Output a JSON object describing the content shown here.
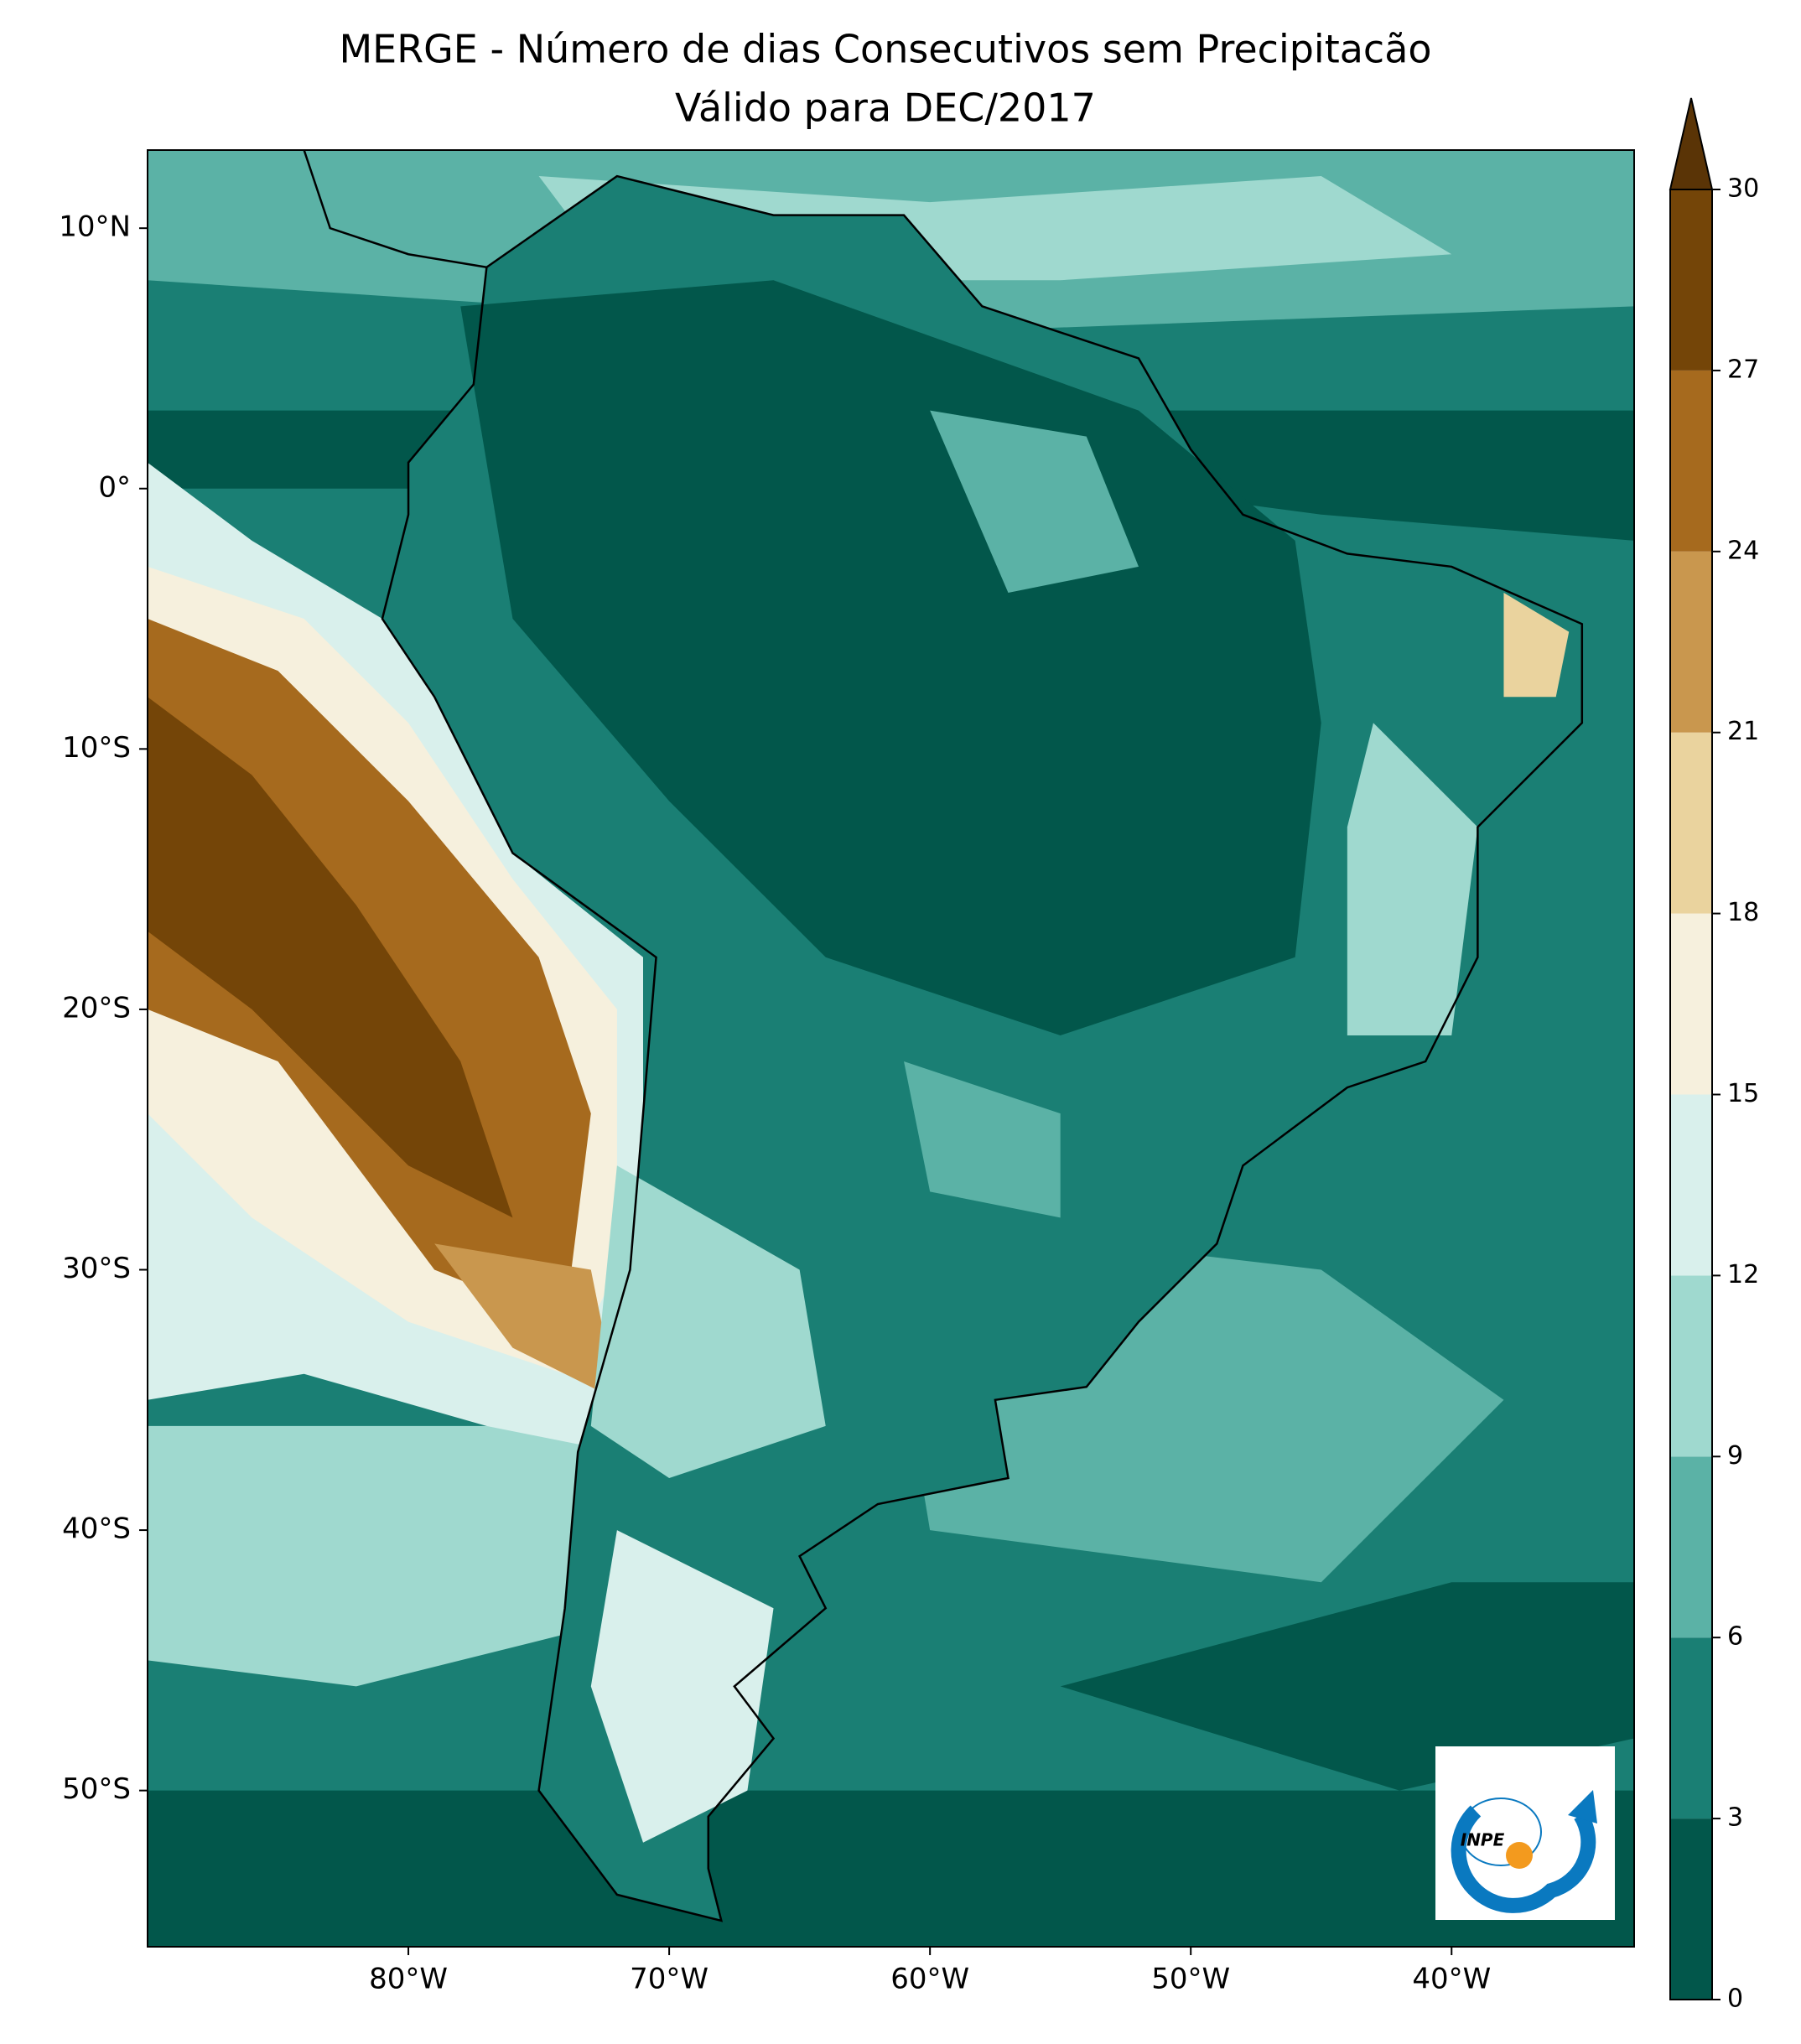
{
  "chart_data": {
    "type": "map",
    "title": "MERGE - Número de dias Consecutivos sem Precipitacão",
    "subtitle": "Válido para DEC/2017",
    "xlim": [
      -90,
      -33
    ],
    "ylim": [
      -56,
      13
    ],
    "xticks": [
      {
        "value": -80,
        "label": "80°W"
      },
      {
        "value": -70,
        "label": "70°W"
      },
      {
        "value": -60,
        "label": "60°W"
      },
      {
        "value": -50,
        "label": "50°W"
      },
      {
        "value": -40,
        "label": "40°W"
      }
    ],
    "yticks": [
      {
        "value": 10,
        "label": "10°N"
      },
      {
        "value": 0,
        "label": "0°"
      },
      {
        "value": -10,
        "label": "10°S"
      },
      {
        "value": -20,
        "label": "20°S"
      },
      {
        "value": -30,
        "label": "30°S"
      },
      {
        "value": -40,
        "label": "40°S"
      },
      {
        "value": -50,
        "label": "50°S"
      }
    ],
    "colorbar": {
      "clim": [
        0,
        30
      ],
      "ticks": [
        0,
        3,
        6,
        9,
        12,
        15,
        18,
        21,
        24,
        27,
        30
      ],
      "colors": [
        "#02574b",
        "#1a7f74",
        "#5bb2a6",
        "#9fd9cf",
        "#d9f0ec",
        "#f6f0dd",
        "#ead39e",
        "#c9974e",
        "#a66a1e",
        "#744508"
      ],
      "extend_color": "#5a3406"
    },
    "logo_text": "INPE"
  }
}
